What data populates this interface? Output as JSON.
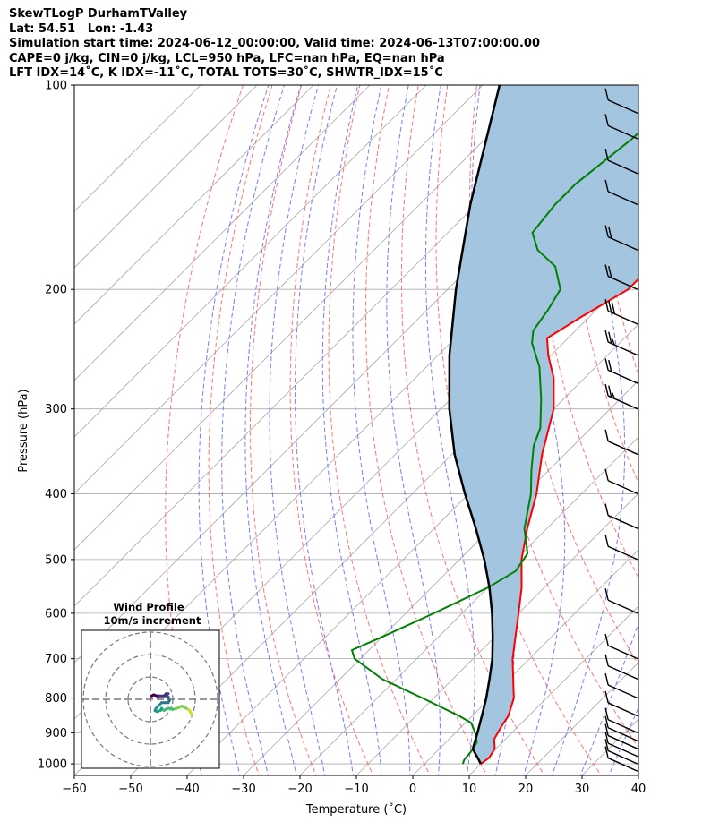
{
  "header": {
    "line1": "SkewTLogP DurhamTValley",
    "line2": "Lat: 54.51   Lon: -1.43",
    "line3": "Simulation start time: 2024-06-12_00:00:00, Valid time: 2024-06-13T07:00:00.00",
    "line4": "CAPE=0 j/kg, CIN=0 j/kg, LCL=950 hPa, LFC=nan hPa, EQ=nan hPa",
    "line5": "LFT IDX=14˚C, K IDX=-11˚C, TOTAL TOTS=30˚C, SHWTR_IDX=15˚C"
  },
  "colors": {
    "temperature": "#ff0000",
    "dewpoint": "#008000",
    "parcel": "#000000",
    "cape_fill": "#a3c5df",
    "dry_adiabat": "#ff6666",
    "moist_adiabat": "#6b6bff",
    "mixing_ratio": "#7777ee",
    "isotherm": "#aaaaaa",
    "zero_isotherm_grid": "#aaaaaa"
  },
  "chart_data": {
    "type": "skewt",
    "title": "SkewTLogP DurhamTValley",
    "xlabel": "Temperature (˚C)",
    "ylabel": "Pressure (hPa)",
    "xlim": [
      -60,
      40
    ],
    "ylim": [
      1040,
      100
    ],
    "xticks": [
      -60,
      -50,
      -40,
      -30,
      -20,
      -10,
      0,
      10,
      20,
      30,
      40
    ],
    "yticks": [
      1000,
      900,
      800,
      700,
      600,
      500,
      400,
      300,
      200,
      100
    ],
    "skew_deg_per_decade_pressure": 45,
    "temperature_profile": [
      {
        "p": 1000,
        "t": 10
      },
      {
        "p": 980,
        "t": 10.4
      },
      {
        "p": 950,
        "t": 9.8
      },
      {
        "p": 920,
        "t": 8
      },
      {
        "p": 880,
        "t": 7
      },
      {
        "p": 850,
        "t": 6.4
      },
      {
        "p": 800,
        "t": 4.2
      },
      {
        "p": 700,
        "t": -3
      },
      {
        "p": 600,
        "t": -10
      },
      {
        "p": 550,
        "t": -14
      },
      {
        "p": 500,
        "t": -19
      },
      {
        "p": 450,
        "t": -23.5
      },
      {
        "p": 400,
        "t": -28
      },
      {
        "p": 350,
        "t": -34
      },
      {
        "p": 300,
        "t": -40
      },
      {
        "p": 270,
        "t": -45.5
      },
      {
        "p": 250,
        "t": -50.5
      },
      {
        "p": 236,
        "t": -53.7
      },
      {
        "p": 220,
        "t": -51.5
      },
      {
        "p": 200,
        "t": -48
      },
      {
        "p": 180,
        "t": -48
      },
      {
        "p": 160,
        "t": -47
      },
      {
        "p": 140,
        "t": -47
      },
      {
        "p": 120,
        "t": -48
      },
      {
        "p": 110,
        "t": -51
      },
      {
        "p": 100,
        "t": -53
      }
    ],
    "dewpoint_profile": [
      {
        "p": 1000,
        "t": 6.8
      },
      {
        "p": 985,
        "t": 6.3
      },
      {
        "p": 960,
        "t": 6.1
      },
      {
        "p": 930,
        "t": 5.5
      },
      {
        "p": 900,
        "t": 3.5
      },
      {
        "p": 870,
        "t": 1
      },
      {
        "p": 850,
        "t": -2.3
      },
      {
        "p": 800,
        "t": -12
      },
      {
        "p": 750,
        "t": -22.5
      },
      {
        "p": 700,
        "t": -31
      },
      {
        "p": 680,
        "t": -33
      },
      {
        "p": 650,
        "t": -30
      },
      {
        "p": 600,
        "t": -25
      },
      {
        "p": 550,
        "t": -20
      },
      {
        "p": 520,
        "t": -18
      },
      {
        "p": 490,
        "t": -19
      },
      {
        "p": 450,
        "t": -24
      },
      {
        "p": 400,
        "t": -29
      },
      {
        "p": 370,
        "t": -33
      },
      {
        "p": 340,
        "t": -37
      },
      {
        "p": 320,
        "t": -39
      },
      {
        "p": 290,
        "t": -44
      },
      {
        "p": 260,
        "t": -50
      },
      {
        "p": 240,
        "t": -55.5
      },
      {
        "p": 230,
        "t": -57.5
      },
      {
        "p": 215,
        "t": -58.5
      },
      {
        "p": 200,
        "t": -60
      },
      {
        "p": 185,
        "t": -65
      },
      {
        "p": 175,
        "t": -71
      },
      {
        "p": 165,
        "t": -75
      },
      {
        "p": 150,
        "t": -76
      },
      {
        "p": 140,
        "t": -76
      },
      {
        "p": 120,
        "t": -74
      },
      {
        "p": 100,
        "t": -73
      }
    ],
    "parcel_profile": [
      {
        "p": 1000,
        "t": 10
      },
      {
        "p": 980,
        "t": 8.4
      },
      {
        "p": 960,
        "t": 6.7
      },
      {
        "p": 950,
        "t": 5.9
      },
      {
        "p": 900,
        "t": 3.9
      },
      {
        "p": 850,
        "t": 1.7
      },
      {
        "p": 800,
        "t": -0.7
      },
      {
        "p": 750,
        "t": -3.5
      },
      {
        "p": 700,
        "t": -6.6
      },
      {
        "p": 650,
        "t": -10.4
      },
      {
        "p": 600,
        "t": -14.7
      },
      {
        "p": 550,
        "t": -19.7
      },
      {
        "p": 500,
        "t": -25.6
      },
      {
        "p": 450,
        "t": -32.6
      },
      {
        "p": 400,
        "t": -40.7
      },
      {
        "p": 350,
        "t": -49.5
      },
      {
        "p": 300,
        "t": -58.5
      },
      {
        "p": 250,
        "t": -68
      },
      {
        "p": 200,
        "t": -78.5
      },
      {
        "p": 150,
        "t": -91
      },
      {
        "p": 100,
        "t": -107
      }
    ],
    "wind_barbs": [
      {
        "p": 1025,
        "kt": 12
      },
      {
        "p": 1000,
        "kt": 10
      },
      {
        "p": 975,
        "kt": 10
      },
      {
        "p": 950,
        "kt": 10
      },
      {
        "p": 925,
        "kt": 10
      },
      {
        "p": 900,
        "kt": 10
      },
      {
        "p": 850,
        "kt": 10
      },
      {
        "p": 800,
        "kt": 10
      },
      {
        "p": 750,
        "kt": 10
      },
      {
        "p": 700,
        "kt": 10
      },
      {
        "p": 600,
        "kt": 10
      },
      {
        "p": 500,
        "kt": 10
      },
      {
        "p": 450,
        "kt": 10
      },
      {
        "p": 400,
        "kt": 10
      },
      {
        "p": 350,
        "kt": 10
      },
      {
        "p": 300,
        "kt": 25
      },
      {
        "p": 275,
        "kt": 20
      },
      {
        "p": 250,
        "kt": 25
      },
      {
        "p": 225,
        "kt": 30
      },
      {
        "p": 200,
        "kt": 20
      },
      {
        "p": 175,
        "kt": 20
      },
      {
        "p": 150,
        "kt": 10
      },
      {
        "p": 135,
        "kt": 10
      },
      {
        "p": 120,
        "kt": 10
      },
      {
        "p": 110,
        "kt": 10
      }
    ],
    "hodograph": {
      "title": "Wind Profile",
      "subtitle": "10m/s increment",
      "ring_increment_ms": 10,
      "rings": 3,
      "points": [
        {
          "u": 18,
          "v": -6
        },
        {
          "u": 18.5,
          "v": -7
        },
        {
          "u": 17.5,
          "v": -5
        },
        {
          "u": 16,
          "v": -4
        },
        {
          "u": 14,
          "v": -3
        },
        {
          "u": 12,
          "v": -4
        },
        {
          "u": 10,
          "v": -4.5
        },
        {
          "u": 8,
          "v": -4
        },
        {
          "u": 6,
          "v": -5
        },
        {
          "u": 5,
          "v": -4
        },
        {
          "u": 4.5,
          "v": -5
        },
        {
          "u": 3,
          "v": -5.5
        },
        {
          "u": 2,
          "v": -5
        },
        {
          "u": 2.5,
          "v": -4
        },
        {
          "u": 5,
          "v": -1.5
        },
        {
          "u": 8,
          "v": -1.5
        },
        {
          "u": 8.5,
          "v": -0.5
        },
        {
          "u": 8,
          "v": 1
        },
        {
          "u": 7,
          "v": 1.5
        },
        {
          "u": 8,
          "v": 2.5
        },
        {
          "u": 7,
          "v": 2.5
        },
        {
          "u": 6,
          "v": 1.5
        },
        {
          "u": 4,
          "v": 1.5
        },
        {
          "u": 3,
          "v": 1.5
        },
        {
          "u": 1.5,
          "v": 2
        },
        {
          "u": 0.5,
          "v": 1.5
        }
      ]
    }
  },
  "axes": {
    "xticks": [
      "−60",
      "−50",
      "−40",
      "−30",
      "−20",
      "−10",
      "0",
      "10",
      "20",
      "30",
      "40"
    ],
    "yticks": [
      "100",
      "200",
      "300",
      "400",
      "500",
      "600",
      "700",
      "800",
      "900",
      "1000"
    ],
    "xlabel": "Temperature (˚C)",
    "ylabel": "Pressure (hPa)"
  }
}
